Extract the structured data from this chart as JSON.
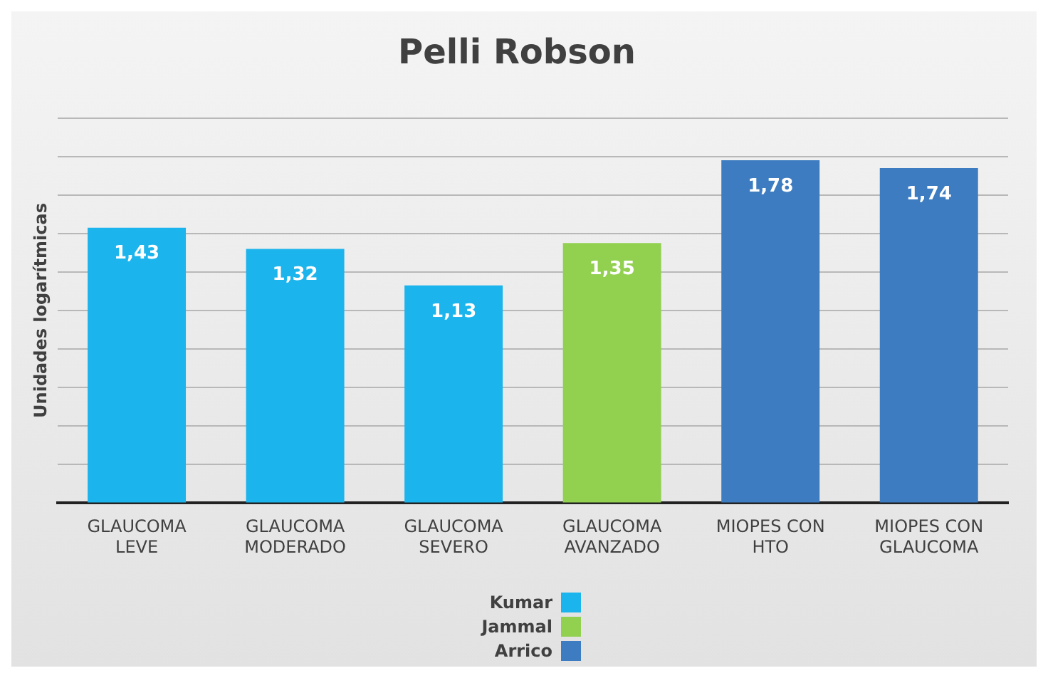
{
  "chart_data": {
    "type": "bar",
    "title": "Pelli Robson",
    "ylabel": "Unidades logarítmicas",
    "categories": [
      "GLAUCOMA LEVE",
      "GLAUCOMA MODERADO",
      "GLAUCOMA SEVERO",
      "GLAUCOMA AVANZADO",
      "MIOPES CON HTO",
      "MIOPES CON GLAUCOMA"
    ],
    "series": [
      {
        "name": "Kumar",
        "color": "#1cb4ec",
        "values": [
          1.43,
          1.32,
          1.13,
          null,
          null,
          null
        ],
        "value_labels": [
          "1,43",
          "1,32",
          "1,13",
          null,
          null,
          null
        ]
      },
      {
        "name": "Jammal",
        "color": "#92d050",
        "values": [
          null,
          null,
          null,
          1.35,
          null,
          null
        ],
        "value_labels": [
          null,
          null,
          null,
          "1,35",
          null,
          null
        ]
      },
      {
        "name": "Arrico",
        "color": "#3d7cc0",
        "values": [
          null,
          null,
          null,
          null,
          1.78,
          1.74
        ],
        "value_labels": [
          null,
          null,
          null,
          null,
          "1,78",
          "1,74"
        ]
      }
    ],
    "ylim": [
      0,
      2
    ],
    "yticks": [
      {
        "value": 0,
        "label": null
      },
      {
        "value": 0.2,
        "label": null
      },
      {
        "value": 0.4,
        "label": null
      },
      {
        "value": 0.6,
        "label": null
      },
      {
        "value": 0.8,
        "label": null
      },
      {
        "value": 1,
        "label": null
      },
      {
        "value": 1.2,
        "label": null
      },
      {
        "value": 1.4,
        "label": null
      },
      {
        "value": 1.6,
        "label": null
      },
      {
        "value": 1.8,
        "label": null
      },
      {
        "value": 2,
        "label": null
      }
    ],
    "tick_labels": "x",
    "grid": "y",
    "legend": "bottom"
  }
}
